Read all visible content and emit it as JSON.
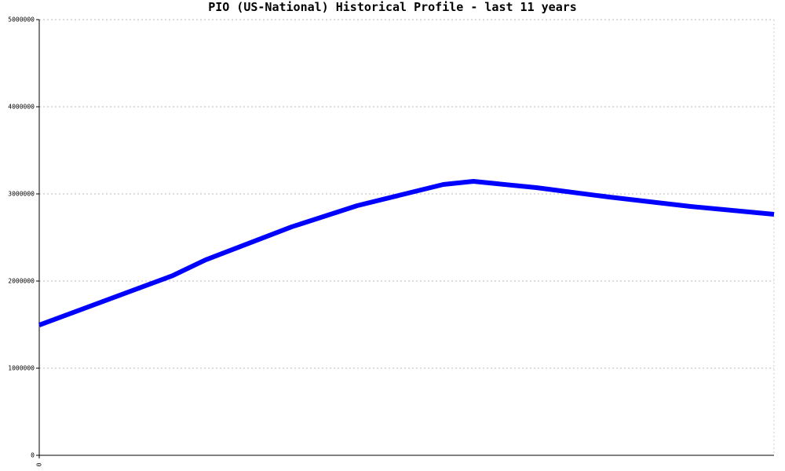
{
  "chart_data": {
    "type": "line",
    "title": "PIO (US-National) Historical Profile - last 11 years",
    "x": [
      0,
      2.0,
      2.49,
      3.78,
      4.76,
      6.05,
      6.5,
      7.44,
      8.53,
      9.75,
      11
    ],
    "series": [
      {
        "color": "#0000ff",
        "values": [
          1495000,
          2063000,
          2243000,
          2622000,
          2865000,
          3108000,
          3144000,
          3072000,
          2964000,
          2856000,
          2766000
        ]
      }
    ],
    "xlim": [
      0,
      11
    ],
    "xticks": [
      0
    ],
    "ylim": [
      0,
      5000000
    ],
    "yticks": [
      0,
      1000000,
      2000000,
      3000000,
      4000000,
      5000000
    ],
    "grid": true
  }
}
